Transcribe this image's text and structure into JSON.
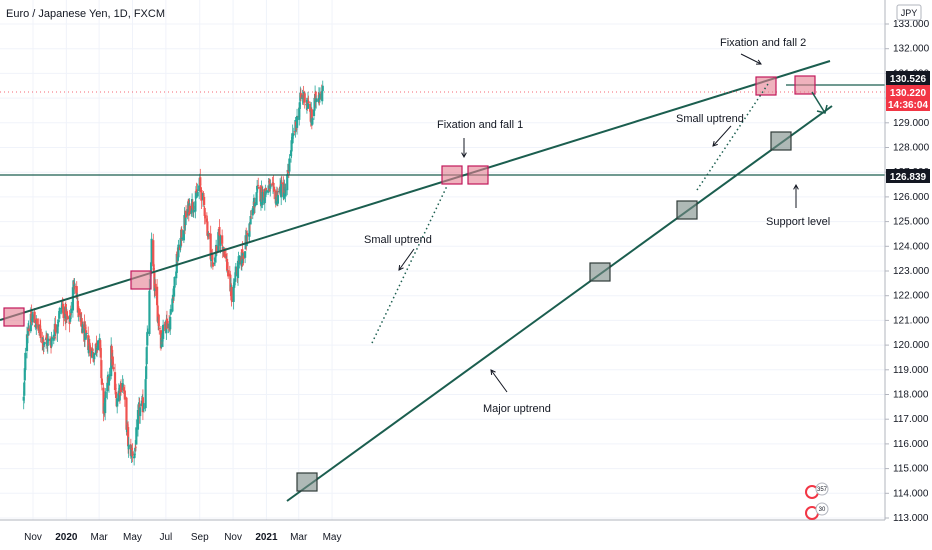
{
  "header": {
    "title": "Euro / Japanese Yen, 1D, FXCM"
  },
  "price_axis": {
    "unit": "JPY",
    "ticks": [
      "133.000",
      "132.000",
      "131.000",
      "130.000",
      "129.000",
      "128.000",
      "127.000",
      "126.000",
      "125.000",
      "124.000",
      "123.000",
      "122.000",
      "121.000",
      "120.000",
      "119.000",
      "118.000",
      "117.000",
      "116.000",
      "115.000",
      "114.000",
      "113.000"
    ]
  },
  "time_axis": {
    "ticks": [
      "Nov",
      "2020",
      "Mar",
      "May",
      "Jul",
      "Sep",
      "Nov",
      "2021",
      "Mar",
      "May"
    ],
    "bold": [
      "2020",
      "2021"
    ]
  },
  "badges": {
    "resistance": "130.526",
    "current": "130.220",
    "countdown": "14:36:04",
    "support": "126.839"
  },
  "annotations": {
    "fix2": "Fixation and fall 2",
    "fix1": "Fixation and fall 1",
    "small_up_1": "Small uptrend",
    "small_up_2": "Small uptrend",
    "major": "Major uptrend",
    "support": "Support level"
  },
  "indicators": {
    "ideas_count": "357",
    "related_count": "30"
  },
  "colors": {
    "up": "#26a69a",
    "down": "#ef5350",
    "line": "#1b5e4f",
    "box_red": "#e57f91",
    "box_gray": "#7a8a86"
  },
  "chart_data": {
    "type": "candlestick",
    "title": "Euro / Japanese Yen, 1D, FXCM",
    "symbol": "EURJPY",
    "timeframe": "1D",
    "ylim": [
      113.0,
      133.0
    ],
    "x_range": [
      "2019-10-15",
      "2021-05-20"
    ],
    "resistance_level": 130.526,
    "support_level": 126.839,
    "last_price": 130.22,
    "anchors": [
      {
        "date": "2019-10-15",
        "close": 117.8
      },
      {
        "date": "2019-10-20",
        "close": 120.6
      },
      {
        "date": "2019-11-01",
        "close": 121.1
      },
      {
        "date": "2019-11-20",
        "close": 120.2
      },
      {
        "date": "2019-12-03",
        "close": 120.1
      },
      {
        "date": "2019-12-24",
        "close": 121.6
      },
      {
        "date": "2020-01-06",
        "close": 120.8
      },
      {
        "date": "2020-01-16",
        "close": 122.8
      },
      {
        "date": "2020-01-24",
        "close": 121.0
      },
      {
        "date": "2020-02-05",
        "close": 120.3
      },
      {
        "date": "2020-02-20",
        "close": 119.6
      },
      {
        "date": "2020-03-01",
        "close": 120.4
      },
      {
        "date": "2020-03-09",
        "close": 117.2
      },
      {
        "date": "2020-03-17",
        "close": 118.4
      },
      {
        "date": "2020-03-23",
        "close": 119.7
      },
      {
        "date": "2020-04-01",
        "close": 117.8
      },
      {
        "date": "2020-04-13",
        "close": 118.6
      },
      {
        "date": "2020-04-24",
        "close": 115.8
      },
      {
        "date": "2020-05-05",
        "close": 115.6
      },
      {
        "date": "2020-05-12",
        "close": 117.3
      },
      {
        "date": "2020-05-22",
        "close": 117.6
      },
      {
        "date": "2020-06-02",
        "close": 122.4
      },
      {
        "date": "2020-06-05",
        "close": 124.1
      },
      {
        "date": "2020-06-10",
        "close": 122.4
      },
      {
        "date": "2020-06-22",
        "close": 120.2
      },
      {
        "date": "2020-06-30",
        "close": 120.9
      },
      {
        "date": "2020-07-08",
        "close": 120.9
      },
      {
        "date": "2020-07-21",
        "close": 123.4
      },
      {
        "date": "2020-08-02",
        "close": 124.8
      },
      {
        "date": "2020-08-12",
        "close": 125.6
      },
      {
        "date": "2020-08-25",
        "close": 125.9
      },
      {
        "date": "2020-09-01",
        "close": 126.5
      },
      {
        "date": "2020-09-10",
        "close": 125.5
      },
      {
        "date": "2020-09-25",
        "close": 123.2
      },
      {
        "date": "2020-10-06",
        "close": 124.4
      },
      {
        "date": "2020-10-15",
        "close": 124.0
      },
      {
        "date": "2020-10-30",
        "close": 121.9
      },
      {
        "date": "2020-11-05",
        "close": 122.8
      },
      {
        "date": "2020-11-18",
        "close": 123.6
      },
      {
        "date": "2020-12-01",
        "close": 124.8
      },
      {
        "date": "2020-12-14",
        "close": 126.2
      },
      {
        "date": "2020-12-25",
        "close": 126.1
      },
      {
        "date": "2021-01-06",
        "close": 126.4
      },
      {
        "date": "2021-01-18",
        "close": 126.0
      },
      {
        "date": "2021-01-29",
        "close": 126.4
      },
      {
        "date": "2021-02-05",
        "close": 126.1
      },
      {
        "date": "2021-02-15",
        "close": 128.0
      },
      {
        "date": "2021-02-25",
        "close": 129.0
      },
      {
        "date": "2021-03-05",
        "close": 130.0
      },
      {
        "date": "2021-03-11",
        "close": 130.1
      },
      {
        "date": "2021-03-18",
        "close": 129.7
      },
      {
        "date": "2021-03-25",
        "close": 129.1
      },
      {
        "date": "2021-04-01",
        "close": 130.0
      },
      {
        "date": "2021-04-09",
        "close": 130.3
      },
      {
        "date": "2021-04-14",
        "close": 130.22
      }
    ]
  }
}
